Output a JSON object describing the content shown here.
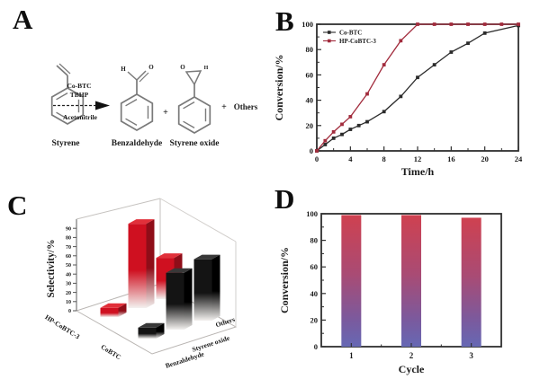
{
  "figure": {
    "background": "#ffffff",
    "panels": [
      {
        "id": "A",
        "label": "A"
      },
      {
        "id": "B",
        "label": "B"
      },
      {
        "id": "C",
        "label": "C"
      },
      {
        "id": "D",
        "label": "D"
      }
    ]
  },
  "scheme": {
    "reactant_label": "Styrene",
    "cond_line1": "Co-BTC",
    "cond_line2": "TBHP",
    "cond_below": "Acetonitrile",
    "plus1": "+",
    "plus2": "+",
    "product1_label": "Benzaldehyde",
    "product2_label": "Styrene oxide",
    "others_label": "Others",
    "atom_H": "H",
    "atom_O": "O",
    "structure_color": "#7a7a7a",
    "text_color": "#1a1a1a"
  },
  "chart_data": [
    {
      "panel": "B",
      "type": "line",
      "xlabel": "Time/h",
      "ylabel": "Conversion/%",
      "xlim": [
        0,
        24
      ],
      "ylim": [
        0,
        100
      ],
      "xticks": [
        0,
        4,
        8,
        12,
        16,
        20,
        24
      ],
      "xminor": [
        2,
        6,
        10,
        14,
        18,
        22
      ],
      "yticks": [
        0,
        20,
        40,
        60,
        80,
        100
      ],
      "yminor": [
        10,
        30,
        50,
        70,
        90
      ],
      "grid": false,
      "legend_position": "top-left",
      "series": [
        {
          "name": "Co-BTC",
          "color": "#2b2b2b",
          "marker": "square",
          "x": [
            0,
            1,
            2,
            3,
            4,
            5,
            6,
            8,
            10,
            12,
            14,
            16,
            18,
            20,
            24
          ],
          "y": [
            0,
            5,
            10,
            13,
            17,
            20,
            23,
            31,
            43,
            58,
            68,
            78,
            85,
            93,
            99
          ]
        },
        {
          "name": "HP-CoBTC-3",
          "color": "#a22c3d",
          "marker": "square",
          "x": [
            0,
            1,
            2,
            3,
            4,
            6,
            8,
            10,
            12,
            14,
            16,
            18,
            20,
            22,
            24
          ],
          "y": [
            0,
            8,
            15,
            21,
            27,
            45,
            68,
            87,
            100,
            100,
            100,
            100,
            100,
            100,
            100
          ]
        }
      ]
    },
    {
      "panel": "C",
      "type": "bar3d",
      "zlabel": "Selectivity/%",
      "zlim": [
        0,
        100
      ],
      "zticks": [
        0,
        10,
        20,
        30,
        40,
        50,
        60,
        70,
        80,
        90
      ],
      "categories": [
        "Benzaldehyde",
        "Styrene oxide",
        "Others"
      ],
      "series": [
        {
          "name": "HP-CoBTC-3",
          "color": "#cf1020",
          "color_dark": "#8f0d18",
          "color_top": "#e1303a",
          "values": [
            10,
            92,
            45
          ]
        },
        {
          "name": "CoBTC",
          "color": "#141414",
          "color_dark": "#000000",
          "color_top": "#383838",
          "values": [
            12,
            62,
            67
          ]
        }
      ]
    },
    {
      "panel": "D",
      "type": "bar",
      "xlabel": "Cycle",
      "ylabel": "Conversion/%",
      "categories": [
        "1",
        "2",
        "3"
      ],
      "values": [
        99,
        99,
        97
      ],
      "ylim": [
        0,
        100
      ],
      "yticks": [
        0,
        20,
        40,
        60,
        80,
        100
      ],
      "yminor": [
        10,
        30,
        50,
        70,
        90
      ],
      "bar_gradient": [
        {
          "offset": 0,
          "color": "#cf4150"
        },
        {
          "offset": 0.45,
          "color": "#a94b74"
        },
        {
          "offset": 0.8,
          "color": "#7a5a9e"
        },
        {
          "offset": 1,
          "color": "#6668b4"
        }
      ]
    }
  ]
}
